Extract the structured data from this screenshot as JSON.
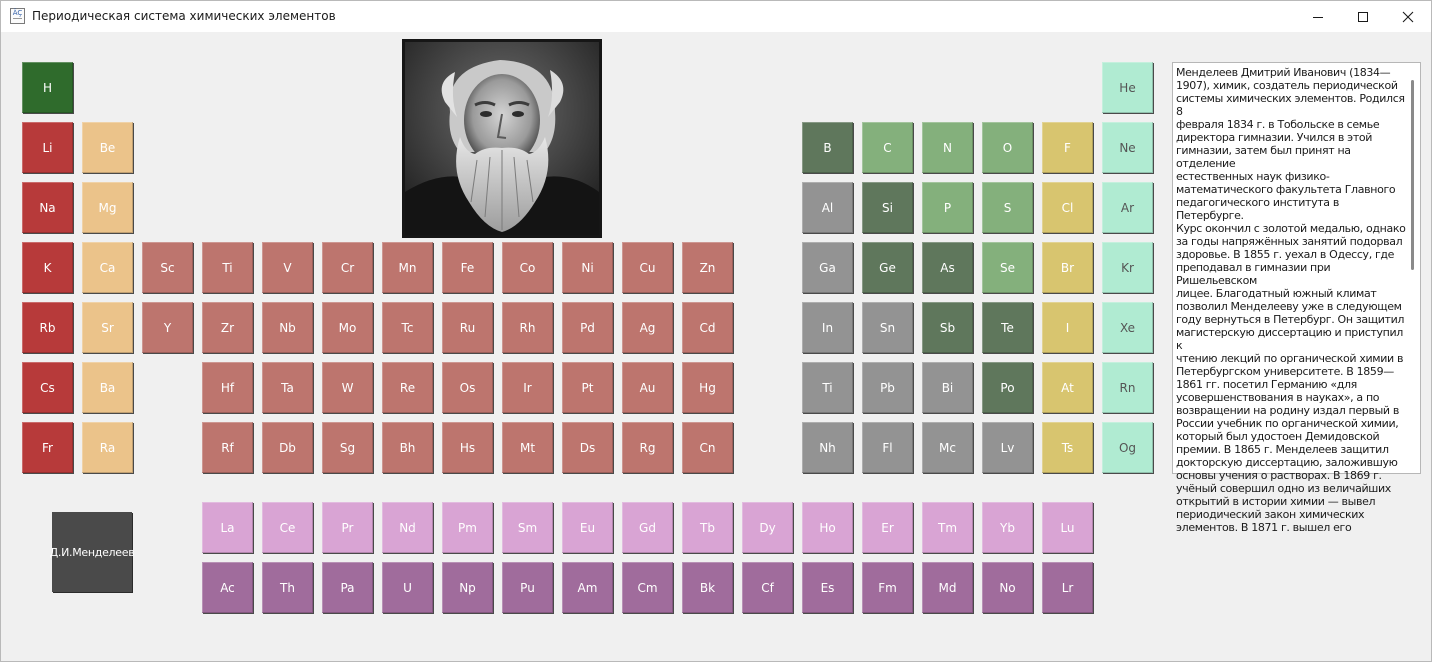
{
  "window": {
    "title": "Периодическая система химических элементов",
    "icon_glyph": "ÂÇ"
  },
  "titlebar_buttons": [
    "minimize-icon",
    "maximize-icon",
    "close-icon"
  ],
  "portrait": {
    "subject": "Dmitri Mendeleev portrait"
  },
  "mendeleev_button": "Д.И.Менделеев",
  "palette": {
    "alkali": "#b73a3a",
    "alkaline_earth": "#ebc38a",
    "transition": "#bd756e",
    "post_transition": "#939393",
    "metalloid": "#5f775c",
    "nonmetal": "#84b07c",
    "halogen": "#d8c56f",
    "noble": "#b0ebd2",
    "lanthanide": "#d9a4d4",
    "actinide": "#a06c9c",
    "hydrogen": "#2f6b2c"
  },
  "elements": [
    {
      "s": "H",
      "c": "hydrogen",
      "t": "light"
    },
    {
      "s": "He",
      "c": "noble",
      "t": "dark"
    },
    {
      "s": "Li",
      "c": "alkali",
      "t": "light"
    },
    {
      "s": "Be",
      "c": "alkaline_earth",
      "t": "light"
    },
    {
      "s": "B",
      "c": "metalloid",
      "t": "light"
    },
    {
      "s": "C",
      "c": "nonmetal",
      "t": "light"
    },
    {
      "s": "N",
      "c": "nonmetal",
      "t": "light"
    },
    {
      "s": "O",
      "c": "nonmetal",
      "t": "light"
    },
    {
      "s": "F",
      "c": "halogen",
      "t": "light"
    },
    {
      "s": "Ne",
      "c": "noble",
      "t": "dark"
    },
    {
      "s": "Na",
      "c": "alkali",
      "t": "light"
    },
    {
      "s": "Mg",
      "c": "alkaline_earth",
      "t": "light"
    },
    {
      "s": "Al",
      "c": "post_transition",
      "t": "light"
    },
    {
      "s": "Si",
      "c": "metalloid",
      "t": "light"
    },
    {
      "s": "P",
      "c": "nonmetal",
      "t": "light"
    },
    {
      "s": "S",
      "c": "nonmetal",
      "t": "light"
    },
    {
      "s": "Cl",
      "c": "halogen",
      "t": "light"
    },
    {
      "s": "Ar",
      "c": "noble",
      "t": "dark"
    },
    {
      "s": "K",
      "c": "alkali",
      "t": "light"
    },
    {
      "s": "Ca",
      "c": "alkaline_earth",
      "t": "light"
    },
    {
      "s": "Sc",
      "c": "transition",
      "t": "light"
    },
    {
      "s": "Ti",
      "c": "transition",
      "t": "light"
    },
    {
      "s": "V",
      "c": "transition",
      "t": "light"
    },
    {
      "s": "Cr",
      "c": "transition",
      "t": "light"
    },
    {
      "s": "Mn",
      "c": "transition",
      "t": "light"
    },
    {
      "s": "Fe",
      "c": "transition",
      "t": "light"
    },
    {
      "s": "Co",
      "c": "transition",
      "t": "light"
    },
    {
      "s": "Ni",
      "c": "transition",
      "t": "light"
    },
    {
      "s": "Cu",
      "c": "transition",
      "t": "light"
    },
    {
      "s": "Zn",
      "c": "transition",
      "t": "light"
    },
    {
      "s": "Ga",
      "c": "post_transition",
      "t": "light"
    },
    {
      "s": "Ge",
      "c": "metalloid",
      "t": "light"
    },
    {
      "s": "As",
      "c": "metalloid",
      "t": "light"
    },
    {
      "s": "Se",
      "c": "nonmetal",
      "t": "light"
    },
    {
      "s": "Br",
      "c": "halogen",
      "t": "light"
    },
    {
      "s": "Kr",
      "c": "noble",
      "t": "dark"
    },
    {
      "s": "Rb",
      "c": "alkali",
      "t": "light"
    },
    {
      "s": "Sr",
      "c": "alkaline_earth",
      "t": "light"
    },
    {
      "s": "Y",
      "c": "transition",
      "t": "light"
    },
    {
      "s": "Zr",
      "c": "transition",
      "t": "light"
    },
    {
      "s": "Nb",
      "c": "transition",
      "t": "light"
    },
    {
      "s": "Mo",
      "c": "transition",
      "t": "light"
    },
    {
      "s": "Tc",
      "c": "transition",
      "t": "light"
    },
    {
      "s": "Ru",
      "c": "transition",
      "t": "light"
    },
    {
      "s": "Rh",
      "c": "transition",
      "t": "light"
    },
    {
      "s": "Pd",
      "c": "transition",
      "t": "light"
    },
    {
      "s": "Ag",
      "c": "transition",
      "t": "light"
    },
    {
      "s": "Cd",
      "c": "transition",
      "t": "light"
    },
    {
      "s": "In",
      "c": "post_transition",
      "t": "light"
    },
    {
      "s": "Sn",
      "c": "post_transition",
      "t": "light"
    },
    {
      "s": "Sb",
      "c": "metalloid",
      "t": "light"
    },
    {
      "s": "Te",
      "c": "metalloid",
      "t": "light"
    },
    {
      "s": "I",
      "c": "halogen",
      "t": "light"
    },
    {
      "s": "Xe",
      "c": "noble",
      "t": "dark"
    },
    {
      "s": "Cs",
      "c": "alkali",
      "t": "light"
    },
    {
      "s": "Ba",
      "c": "alkaline_earth",
      "t": "light"
    },
    {
      "s": "Hf",
      "c": "transition",
      "t": "light"
    },
    {
      "s": "Ta",
      "c": "transition",
      "t": "light"
    },
    {
      "s": "W",
      "c": "transition",
      "t": "light"
    },
    {
      "s": "Re",
      "c": "transition",
      "t": "light"
    },
    {
      "s": "Os",
      "c": "transition",
      "t": "light"
    },
    {
      "s": "Ir",
      "c": "transition",
      "t": "light"
    },
    {
      "s": "Pt",
      "c": "transition",
      "t": "light"
    },
    {
      "s": "Au",
      "c": "transition",
      "t": "light"
    },
    {
      "s": "Hg",
      "c": "transition",
      "t": "light"
    },
    {
      "s": "Ti",
      "c": "post_transition",
      "t": "light"
    },
    {
      "s": "Pb",
      "c": "post_transition",
      "t": "light"
    },
    {
      "s": "Bi",
      "c": "post_transition",
      "t": "light"
    },
    {
      "s": "Po",
      "c": "metalloid",
      "t": "light"
    },
    {
      "s": "At",
      "c": "halogen",
      "t": "light"
    },
    {
      "s": "Rn",
      "c": "noble",
      "t": "dark"
    },
    {
      "s": "Fr",
      "c": "alkali",
      "t": "light"
    },
    {
      "s": "Ra",
      "c": "alkaline_earth",
      "t": "light"
    },
    {
      "s": "Rf",
      "c": "transition",
      "t": "light"
    },
    {
      "s": "Db",
      "c": "transition",
      "t": "light"
    },
    {
      "s": "Sg",
      "c": "transition",
      "t": "light"
    },
    {
      "s": "Bh",
      "c": "transition",
      "t": "light"
    },
    {
      "s": "Hs",
      "c": "transition",
      "t": "light"
    },
    {
      "s": "Mt",
      "c": "transition",
      "t": "light"
    },
    {
      "s": "Ds",
      "c": "transition",
      "t": "light"
    },
    {
      "s": "Rg",
      "c": "transition",
      "t": "light"
    },
    {
      "s": "Cn",
      "c": "transition",
      "t": "light"
    },
    {
      "s": "Nh",
      "c": "post_transition",
      "t": "light"
    },
    {
      "s": "Fl",
      "c": "post_transition",
      "t": "light"
    },
    {
      "s": "Mc",
      "c": "post_transition",
      "t": "light"
    },
    {
      "s": "Lv",
      "c": "post_transition",
      "t": "light"
    },
    {
      "s": "Ts",
      "c": "halogen",
      "t": "light"
    },
    {
      "s": "Og",
      "c": "noble",
      "t": "dark"
    },
    {
      "s": "La",
      "c": "lanthanide",
      "t": "light"
    },
    {
      "s": "Ce",
      "c": "lanthanide",
      "t": "light"
    },
    {
      "s": "Pr",
      "c": "lanthanide",
      "t": "light"
    },
    {
      "s": "Nd",
      "c": "lanthanide",
      "t": "light"
    },
    {
      "s": "Pm",
      "c": "lanthanide",
      "t": "light"
    },
    {
      "s": "Sm",
      "c": "lanthanide",
      "t": "light"
    },
    {
      "s": "Eu",
      "c": "lanthanide",
      "t": "light"
    },
    {
      "s": "Gd",
      "c": "lanthanide",
      "t": "light"
    },
    {
      "s": "Tb",
      "c": "lanthanide",
      "t": "light"
    },
    {
      "s": "Dy",
      "c": "lanthanide",
      "t": "light"
    },
    {
      "s": "Ho",
      "c": "lanthanide",
      "t": "light"
    },
    {
      "s": "Er",
      "c": "lanthanide",
      "t": "light"
    },
    {
      "s": "Tm",
      "c": "lanthanide",
      "t": "light"
    },
    {
      "s": "Yb",
      "c": "lanthanide",
      "t": "light"
    },
    {
      "s": "Lu",
      "c": "lanthanide",
      "t": "light"
    },
    {
      "s": "Ac",
      "c": "actinide",
      "t": "light"
    },
    {
      "s": "Th",
      "c": "actinide",
      "t": "light"
    },
    {
      "s": "Pa",
      "c": "actinide",
      "t": "light"
    },
    {
      "s": "U",
      "c": "actinide",
      "t": "light"
    },
    {
      "s": "Np",
      "c": "actinide",
      "t": "light"
    },
    {
      "s": "Pu",
      "c": "actinide",
      "t": "light"
    },
    {
      "s": "Am",
      "c": "actinide",
      "t": "light"
    },
    {
      "s": "Cm",
      "c": "actinide",
      "t": "light"
    },
    {
      "s": "Bk",
      "c": "actinide",
      "t": "light"
    },
    {
      "s": "Cf",
      "c": "actinide",
      "t": "light"
    },
    {
      "s": "Es",
      "c": "actinide",
      "t": "light"
    },
    {
      "s": "Fm",
      "c": "actinide",
      "t": "light"
    },
    {
      "s": "Md",
      "c": "actinide",
      "t": "light"
    },
    {
      "s": "No",
      "c": "actinide",
      "t": "light"
    },
    {
      "s": "Lr",
      "c": "actinide",
      "t": "light"
    }
  ],
  "bio": {
    "text": "Менделеев Дмитрий Иванович (1834—\n1907), химик, создатель периодической\nсистемы химических элементов. Родился 8\nфевраля 1834 г. в Тобольске в семье\nдиректора гимназии. Учился в этой\nгимназии, затем был принят на отделение\nестественных наук физико-\nматематического факультета Главного\nпедагогического института в Петербурге.\nКурс окончил с золотой медалью, однако\nза годы напряжённых занятий подорвал\nздоровье. В 1855 г. уехал в Одессу, где\nпреподавал в гимназии при Ришельевском\nлицее. Благодатный южный климат\nпозволил Менделееву уже в следующем\nгоду вернуться в Петербург. Он защитил\nмагистерскую диссертацию и приступил к\nчтению лекций по органической химии в\nПетербургском университете. В 1859—\n1861 гг. посетил Германию «для\nусовершенствования в науках», а по\nвозвращении на родину издал первый в\nРоссии учебник по органической химии,\nкоторый был удостоен Демидовской\nпремии. В 1865 г. Менделеев защитил\nдокторскую диссертацию, заложившую\nосновы учения о растворах. В 1869 г.\nучёный совершил одно из величайших\nоткрытий в истории химии — вывел\nпериодический закон химических\nэлементов. В 1871 г. вышел его"
  }
}
